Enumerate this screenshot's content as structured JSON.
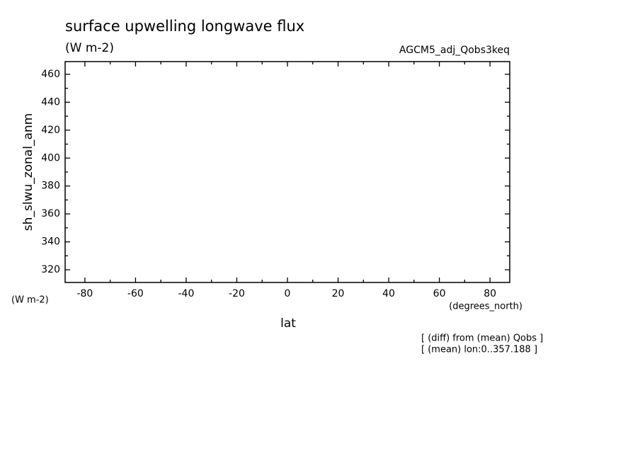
{
  "chart_data": {
    "type": "line",
    "title": "surface upwelling longwave flux",
    "units": "(W m-2)",
    "dataset": "AGCM5_adj_Qobs3keq",
    "ylabel": "sh_slwu_zonal_anm",
    "yunits": "(W m-2)",
    "xunits": "(degrees_north)",
    "xlabel": "lat",
    "notes": [
      "[ (diff) from (mean) Qobs ]",
      "[ (mean) lon:0..357.188 ]"
    ],
    "series": [],
    "xlim": [
      -87.8,
      87.8
    ],
    "xticks": [
      -80,
      -60,
      -40,
      -20,
      0,
      20,
      40,
      60,
      80
    ],
    "xminorticks": [
      -70,
      -50,
      -30,
      -10,
      10,
      30,
      50,
      70
    ],
    "ylim": [
      310.9,
      469.1
    ],
    "yticks": [
      320,
      340,
      360,
      380,
      400,
      420,
      440,
      460
    ],
    "yminorticks": [
      330,
      350,
      370,
      390,
      410,
      430,
      450
    ],
    "grid": false
  }
}
